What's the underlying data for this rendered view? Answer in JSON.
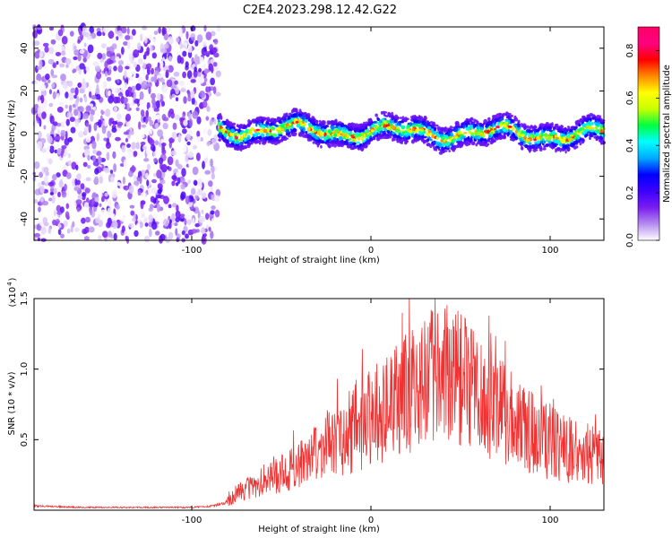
{
  "page_title": "C2E4.2023.298.12.42.G22",
  "chart_data": [
    {
      "type": "heatmap",
      "title": "C2E4.2023.298.12.42.G22",
      "xlabel": "Height of straight line (km)",
      "ylabel": "Frequency (Hz)",
      "xlim": [
        -188,
        130
      ],
      "ylim": [
        -50,
        50
      ],
      "xticks": [
        -100,
        0,
        100
      ],
      "yticks": [
        -40,
        -20,
        0,
        20,
        40
      ],
      "description_regions": [
        {
          "x_range": [
            -188,
            -85
          ],
          "y_range": [
            -50,
            50
          ],
          "amplitude_range": [
            0.0,
            0.2
          ]
        },
        {
          "x_range": [
            -85,
            130
          ],
          "y_range": [
            -6,
            8
          ],
          "amplitude_range": [
            0.15,
            0.85
          ]
        }
      ],
      "colorbar": {
        "label": "Normalized spectral amplitude",
        "range": [
          0.0,
          0.9
        ],
        "ticks": [
          "0.0",
          "0.2",
          "0.4",
          "0.6",
          "0.8"
        ],
        "colors": [
          "#ffffff",
          "#b48cf0",
          "#7a1cf0",
          "#3c00ff",
          "#0000ff",
          "#00aaff",
          "#00ffff",
          "#00ff40",
          "#c8ff00",
          "#ffff00",
          "#ff8800",
          "#ff0000",
          "#ff0080",
          "#ff0066"
        ]
      },
      "grid": false
    },
    {
      "type": "line",
      "xlabel": "Height of straight line (km)",
      "ylabel": "SNR (10 * v/v)",
      "y_scale_label": "(x10",
      "y_scale_exp": "4",
      "y_scale_close": ")",
      "xlim": [
        -188,
        130
      ],
      "ylim": [
        0,
        1.5
      ],
      "xticks": [
        -100,
        0,
        100
      ],
      "yticks": [
        "0.5",
        "1.0",
        "1.5"
      ],
      "series": [
        {
          "color": "#f03232",
          "x": [
            -188,
            -160,
            -130,
            -100,
            -88,
            -80,
            -75,
            -70,
            -60,
            -50,
            -40,
            -30,
            -20,
            -10,
            0,
            10,
            20,
            30,
            40,
            45,
            50,
            60,
            70,
            80,
            90,
            100,
            110,
            120,
            130
          ],
          "y": [
            0.03,
            0.02,
            0.02,
            0.02,
            0.03,
            0.06,
            0.12,
            0.15,
            0.2,
            0.26,
            0.32,
            0.4,
            0.48,
            0.57,
            0.66,
            0.74,
            0.84,
            0.9,
            0.95,
            0.98,
            0.9,
            0.82,
            0.72,
            0.63,
            0.55,
            0.48,
            0.43,
            0.4,
            0.36
          ]
        }
      ]
    }
  ]
}
